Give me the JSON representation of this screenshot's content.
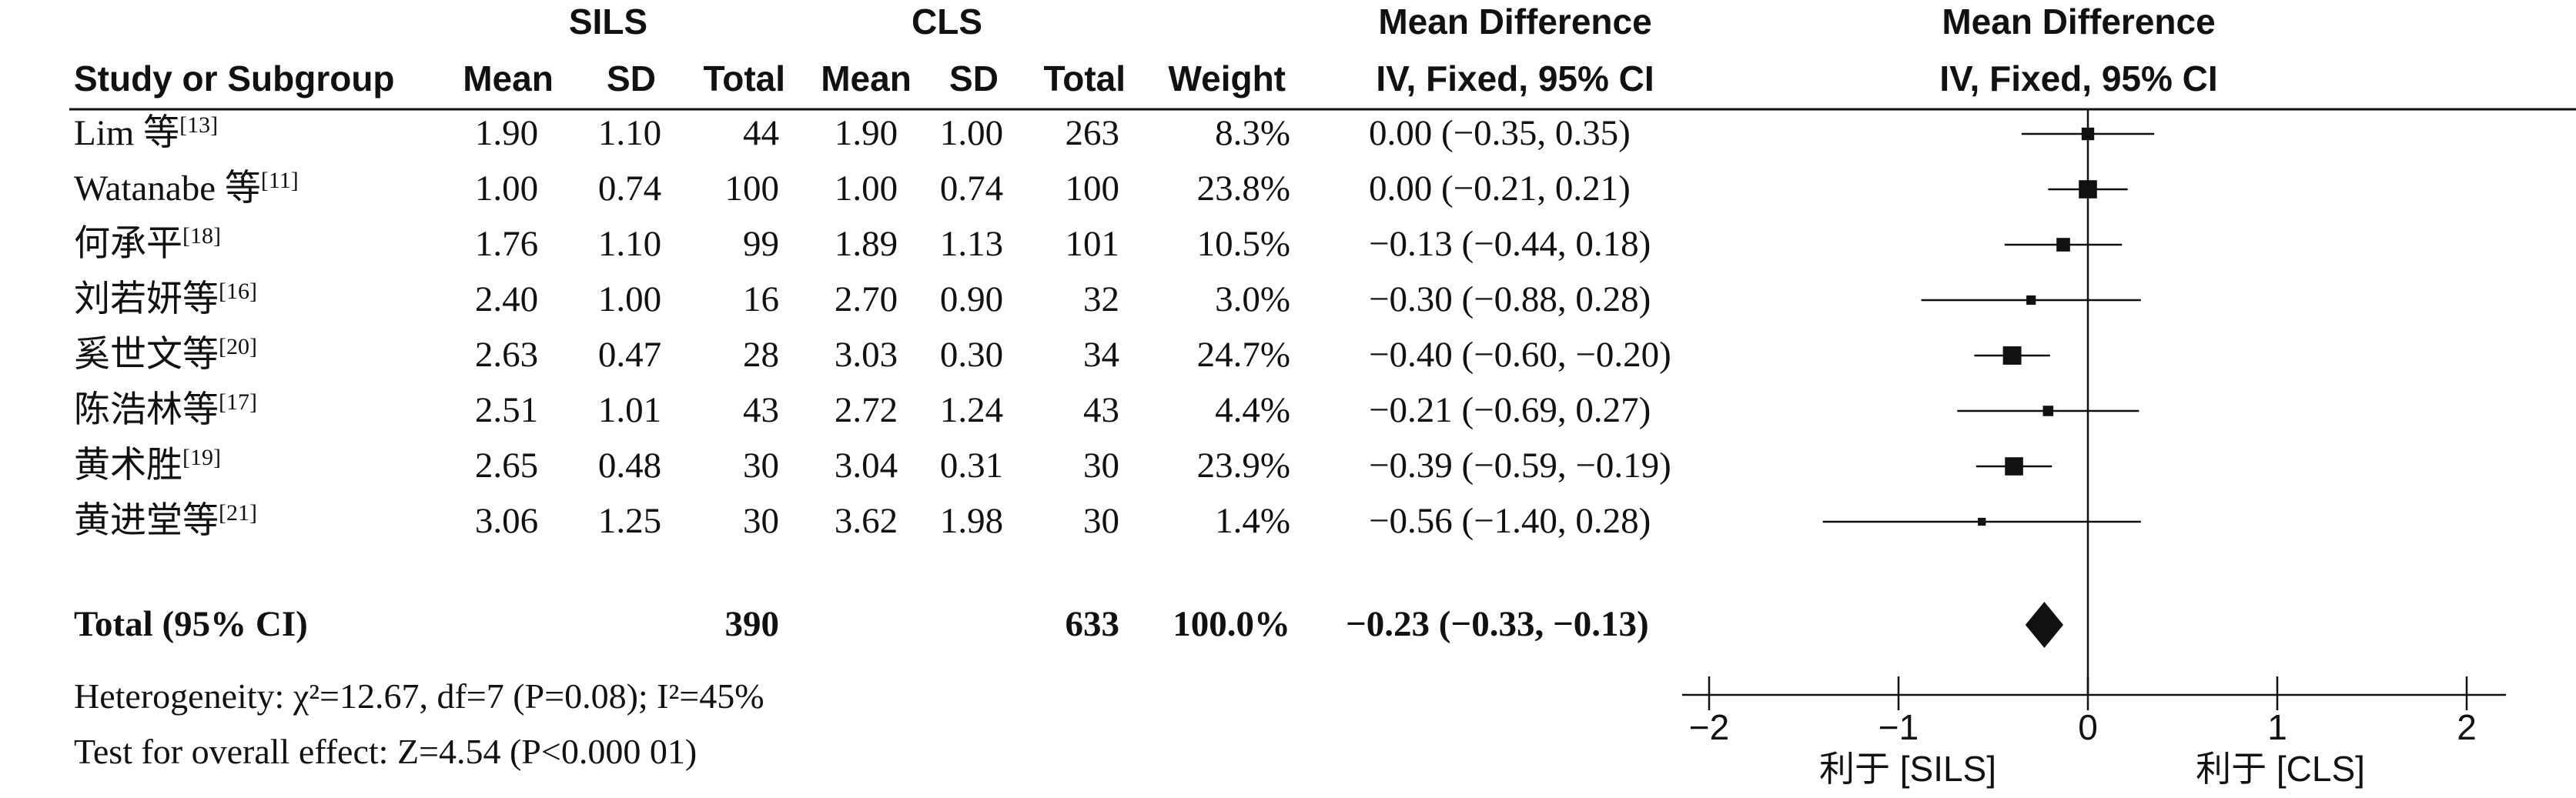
{
  "chart_data": {
    "type": "forest",
    "headers": {
      "group1": "SILS",
      "group2": "CLS",
      "effect_title": "Mean Difference",
      "effect_subtitle": "IV, Fixed, 95% CI",
      "plot_title": "Mean Difference",
      "plot_subtitle": "IV, Fixed, 95% CI",
      "study": "Study or Subgroup",
      "mean": "Mean",
      "sd": "SD",
      "total": "Total",
      "weight": "Weight"
    },
    "studies": [
      {
        "study": "Lim 等",
        "ref": "[13]",
        "mean1": "1.90",
        "sd1": "1.10",
        "n1": "44",
        "mean2": "1.90",
        "sd2": "1.00",
        "n2": "263",
        "weight": "8.3%",
        "ci_text": "0.00 (−0.35, 0.35)",
        "md": 0.0,
        "lo": -0.35,
        "hi": 0.35,
        "w": 8.3
      },
      {
        "study": "Watanabe 等",
        "ref": "[11]",
        "mean1": "1.00",
        "sd1": "0.74",
        "n1": "100",
        "mean2": "1.00",
        "sd2": "0.74",
        "n2": "100",
        "weight": "23.8%",
        "ci_text": "0.00 (−0.21, 0.21)",
        "md": 0.0,
        "lo": -0.21,
        "hi": 0.21,
        "w": 23.8
      },
      {
        "study": "何承平",
        "ref": "[18]",
        "mean1": "1.76",
        "sd1": "1.10",
        "n1": "99",
        "mean2": "1.89",
        "sd2": "1.13",
        "n2": "101",
        "weight": "10.5%",
        "ci_text": "−0.13 (−0.44, 0.18)",
        "md": -0.13,
        "lo": -0.44,
        "hi": 0.18,
        "w": 10.5
      },
      {
        "study": "刘若妍等",
        "ref": "[16]",
        "mean1": "2.40",
        "sd1": "1.00",
        "n1": "16",
        "mean2": "2.70",
        "sd2": "0.90",
        "n2": "32",
        "weight": "3.0%",
        "ci_text": "−0.30 (−0.88, 0.28)",
        "md": -0.3,
        "lo": -0.88,
        "hi": 0.28,
        "w": 3.0
      },
      {
        "study": "奚世文等",
        "ref": "[20]",
        "mean1": "2.63",
        "sd1": "0.47",
        "n1": "28",
        "mean2": "3.03",
        "sd2": "0.30",
        "n2": "34",
        "weight": "24.7%",
        "ci_text": "−0.40 (−0.60, −0.20)",
        "md": -0.4,
        "lo": -0.6,
        "hi": -0.2,
        "w": 24.7
      },
      {
        "study": "陈浩林等",
        "ref": "[17]",
        "mean1": "2.51",
        "sd1": "1.01",
        "n1": "43",
        "mean2": "2.72",
        "sd2": "1.24",
        "n2": "43",
        "weight": "4.4%",
        "ci_text": "−0.21 (−0.69, 0.27)",
        "md": -0.21,
        "lo": -0.69,
        "hi": 0.27,
        "w": 4.4
      },
      {
        "study": "黄术胜",
        "ref": "[19]",
        "mean1": "2.65",
        "sd1": "0.48",
        "n1": "30",
        "mean2": "3.04",
        "sd2": "0.31",
        "n2": "30",
        "weight": "23.9%",
        "ci_text": "−0.39 (−0.59, −0.19)",
        "md": -0.39,
        "lo": -0.59,
        "hi": -0.19,
        "w": 23.9
      },
      {
        "study": "黄进堂等",
        "ref": "[21]",
        "mean1": "3.06",
        "sd1": "1.25",
        "n1": "30",
        "mean2": "3.62",
        "sd2": "1.98",
        "n2": "30",
        "weight": "1.4%",
        "ci_text": "−0.56 (−1.40, 0.28)",
        "md": -0.56,
        "lo": -1.4,
        "hi": 0.28,
        "w": 1.4
      }
    ],
    "total": {
      "label": "Total (95% CI)",
      "n1": "390",
      "n2": "633",
      "weight": "100.0%",
      "ci_text": "−0.23 (−0.33, −0.13)",
      "md": -0.23,
      "lo": -0.33,
      "hi": -0.13
    },
    "heterogeneity": "Heterogeneity: χ²=12.67, df=7 (P=0.08); I²=45%",
    "overall_effect": "Test for overall effect: Z=4.54 (P<0.000 01)",
    "x_ticks": [
      "−2",
      "−1",
      "0",
      "1",
      "2"
    ],
    "x_tick_values": [
      -2,
      -1,
      0,
      1,
      2
    ],
    "xlim": [
      -2,
      2
    ],
    "favours_left": "利于 [SILS]",
    "favours_right": "利于 [CLS]"
  }
}
